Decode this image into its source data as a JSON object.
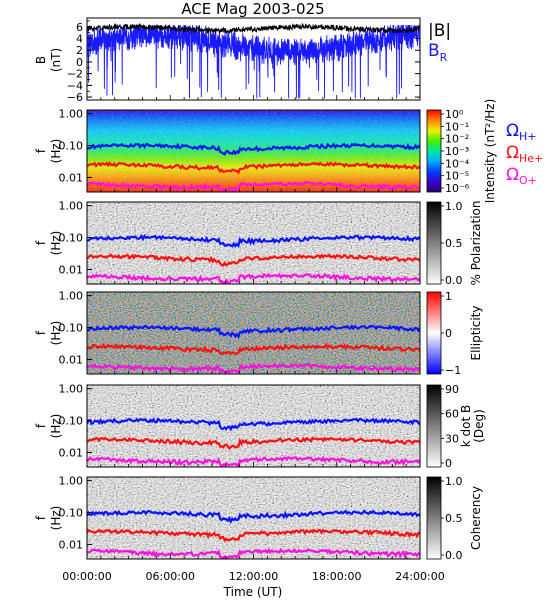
{
  "title": "ACE Mag 2003-025",
  "colors": {
    "B_total": "#000000",
    "B_R": "#1a1aff",
    "H": "#0a14ff",
    "He": "#ff1010",
    "O": "#ff10e0"
  },
  "chart_data": [
    {
      "type": "line",
      "panel": "magnetic field",
      "ylabel_lines": [
        "B",
        "(nT)"
      ],
      "yticks": [
        "6",
        "4",
        "2",
        "0",
        "−2",
        "−4",
        "−6"
      ],
      "ylim": [
        -6.5,
        7.5
      ],
      "legend": [
        "|B|",
        "B"
      ],
      "legend_sub": "R",
      "series": [
        {
          "name": "|B|",
          "approx_level": 5.7
        },
        {
          "name": "B_R",
          "approx_range": [
            -6.2,
            6.4
          ]
        }
      ]
    },
    {
      "type": "heatmap",
      "panel": "intensity spectrogram",
      "ylabel_lines": [
        "f",
        "(Hz)"
      ],
      "yticks": [
        "1.00",
        "0.10",
        "0.01"
      ],
      "colorbar_label": "Intensity (nT²/Hz)",
      "colorbar_ticks": [
        "10⁰",
        "10⁻¹",
        "10⁻²",
        "10⁻³",
        "10⁻⁴",
        "10⁻⁵",
        "10⁻⁶"
      ]
    },
    {
      "type": "heatmap",
      "panel": "polarization",
      "ylabel_lines": [
        "f",
        "(Hz)"
      ],
      "yticks": [
        "1.00",
        "0.10",
        "0.01"
      ],
      "colorbar_label": "% Polarization",
      "colorbar_ticks": [
        "1.0",
        "0.5",
        "0.0"
      ]
    },
    {
      "type": "heatmap",
      "panel": "ellipticity",
      "ylabel_lines": [
        "f",
        "(Hz)"
      ],
      "yticks": [
        "1.00",
        "0.10",
        "0.01"
      ],
      "colorbar_label": "Ellipticity",
      "colorbar_ticks": [
        "1",
        "0",
        "−1"
      ]
    },
    {
      "type": "heatmap",
      "panel": "wave normal angle",
      "ylabel_lines": [
        "f",
        "(Hz)"
      ],
      "yticks": [
        "1.00",
        "0.10",
        "0.01"
      ],
      "colorbar_label_lines": [
        "k dot B",
        "(Deg)"
      ],
      "colorbar_ticks": [
        "90",
        "60",
        "30",
        "0"
      ]
    },
    {
      "type": "heatmap",
      "panel": "coherency",
      "ylabel_lines": [
        "f",
        "(Hz)"
      ],
      "yticks": [
        "1.00",
        "0.10",
        "0.01"
      ],
      "colorbar_label": "Coherency",
      "colorbar_ticks": [
        "1.0",
        "0.5",
        "0.0"
      ]
    }
  ],
  "gyrofrequency_lines": {
    "legend": [
      {
        "symbol": "Ω",
        "sub": "H+"
      },
      {
        "symbol": "Ω",
        "sub": "He+"
      },
      {
        "symbol": "Ω",
        "sub": "O+"
      }
    ],
    "approx_values_hz": {
      "H+": 0.09,
      "He+": 0.023,
      "O+": 0.0057
    }
  },
  "x_axis": {
    "label": "Time (UT)",
    "ticks": [
      "00:00:00",
      "06:00:00",
      "12:00:00",
      "18:00:00",
      "24:00:00"
    ],
    "range_hours": [
      0,
      24
    ]
  }
}
